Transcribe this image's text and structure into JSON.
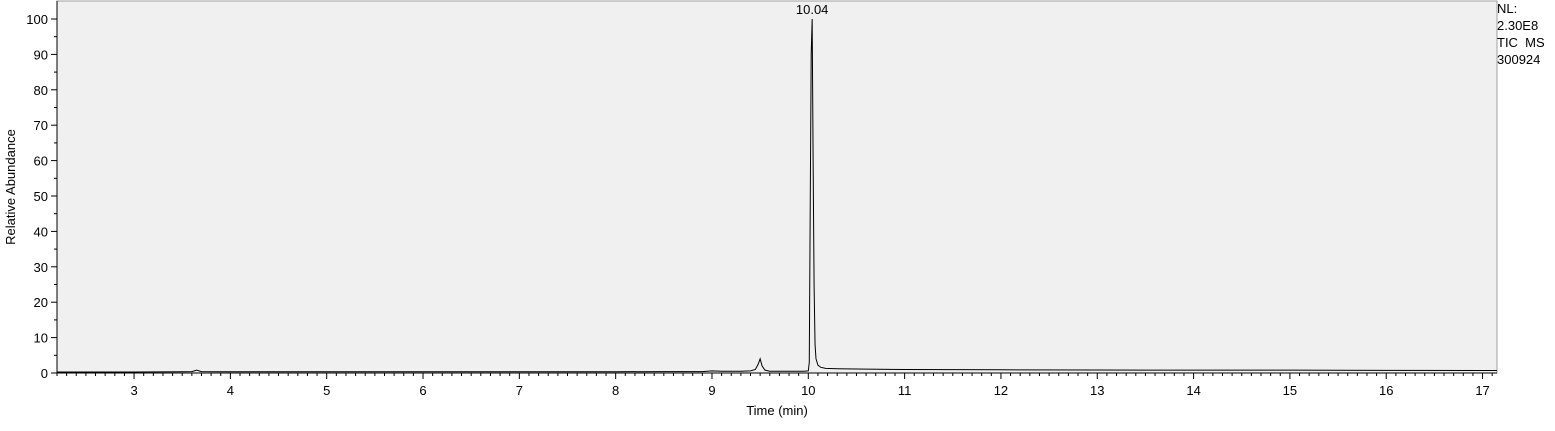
{
  "chart_data": {
    "type": "line",
    "title": "",
    "xlabel": "Time (min)",
    "ylabel": "Relative Abundance",
    "xlim": [
      2.2,
      17.15
    ],
    "ylim": [
      0,
      100
    ],
    "x_ticks": [
      3,
      4,
      5,
      6,
      7,
      8,
      9,
      10,
      11,
      12,
      13,
      14,
      15,
      16,
      17
    ],
    "y_ticks": [
      0,
      10,
      20,
      30,
      40,
      50,
      60,
      70,
      80,
      90,
      100
    ],
    "grid": false,
    "background": "#f0f0f0",
    "line_color": "#000000",
    "series": [
      {
        "x": [
          2.2,
          2.5,
          3.0,
          3.5,
          3.6,
          3.65,
          3.7,
          4.0,
          5.0,
          6.0,
          7.0,
          8.0,
          8.5,
          8.9,
          9.0,
          9.1,
          9.3,
          9.4,
          9.45,
          9.48,
          9.5,
          9.52,
          9.55,
          9.6,
          9.8,
          9.95,
          10.0,
          10.01,
          10.02,
          10.03,
          10.04,
          10.05,
          10.06,
          10.07,
          10.08,
          10.1,
          10.13,
          10.18,
          10.3,
          10.6,
          11.0,
          12.0,
          13.0,
          14.0,
          15.0,
          16.0,
          17.0,
          17.15
        ],
        "y": [
          0.3,
          0.3,
          0.3,
          0.35,
          0.4,
          0.8,
          0.4,
          0.35,
          0.35,
          0.35,
          0.35,
          0.35,
          0.4,
          0.4,
          0.6,
          0.5,
          0.5,
          0.6,
          1.0,
          2.5,
          4.0,
          2.0,
          0.8,
          0.5,
          0.5,
          0.5,
          0.6,
          3.0,
          47.0,
          90.0,
          100.0,
          60.0,
          25.0,
          8.0,
          4.0,
          2.2,
          1.6,
          1.3,
          1.2,
          1.1,
          1.0,
          0.9,
          0.85,
          0.8,
          0.8,
          0.75,
          0.7,
          0.7
        ]
      }
    ],
    "annotations": [
      {
        "text": "10.04",
        "x": 10.04,
        "y": 100
      }
    ]
  },
  "info": {
    "nl_label": "NL:",
    "nl_value": "2.30E8",
    "scan_filter": "TIC  MS",
    "file_name": "300924"
  }
}
